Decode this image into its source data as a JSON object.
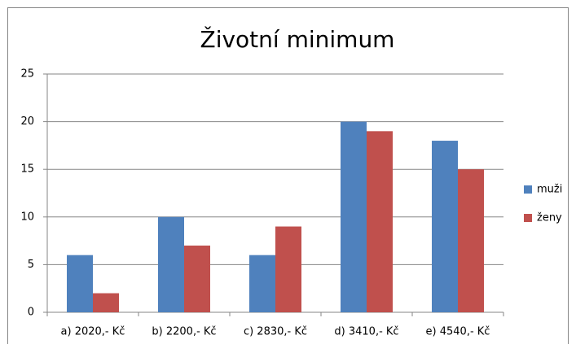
{
  "chart_data": {
    "type": "bar",
    "title": "Životní minimum",
    "categories": [
      "a) 2020,- Kč",
      "b) 2200,- Kč",
      "c) 2830,- Kč",
      "d) 3410,- Kč",
      "e) 4540,- Kč"
    ],
    "series": [
      {
        "name": "muži",
        "color": "#4f81bd",
        "values": [
          6,
          10,
          6,
          20,
          18
        ]
      },
      {
        "name": "ženy",
        "color": "#c0504d",
        "values": [
          2,
          7,
          9,
          19,
          15
        ]
      }
    ],
    "ylim": [
      0,
      25
    ],
    "yticks": [
      0,
      5,
      10,
      15,
      20,
      25
    ],
    "grid": true,
    "legend": "right"
  }
}
